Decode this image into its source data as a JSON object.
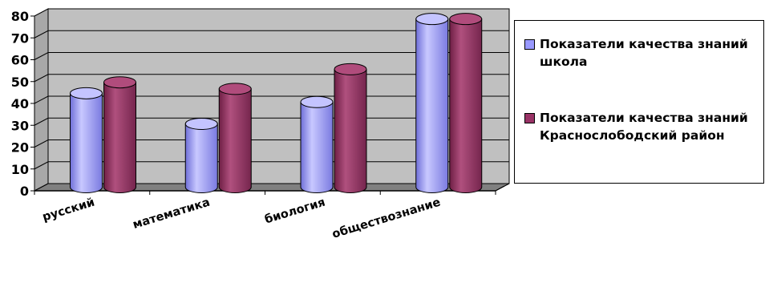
{
  "chart_data": {
    "type": "bar",
    "categories": [
      "русский",
      "математика",
      "биология",
      "обществознание"
    ],
    "series": [
      {
        "name": "Показатели качества знаний школа",
        "values": [
          43,
          29,
          39,
          77
        ],
        "color": "#9999ff"
      },
      {
        "name": "Показатели качества знаний Краснослободский район",
        "values": [
          48,
          45,
          54,
          77
        ],
        "color": "#993366"
      }
    ],
    "ylim": [
      0,
      80
    ],
    "yticks": [
      "0",
      "10",
      "20",
      "30",
      "40",
      "50",
      "60",
      "70",
      "80"
    ],
    "grid": true,
    "legend_position": "right",
    "style": "3d-cylinder",
    "wall_color": "#c0c0c0",
    "floor_color": "#808080"
  },
  "legend": {
    "items": [
      {
        "label": "Показатели качества знаний школа",
        "color": "#9999ff"
      },
      {
        "label": "Показатели качества знаний Краснослободский район",
        "color": "#993366"
      }
    ]
  }
}
